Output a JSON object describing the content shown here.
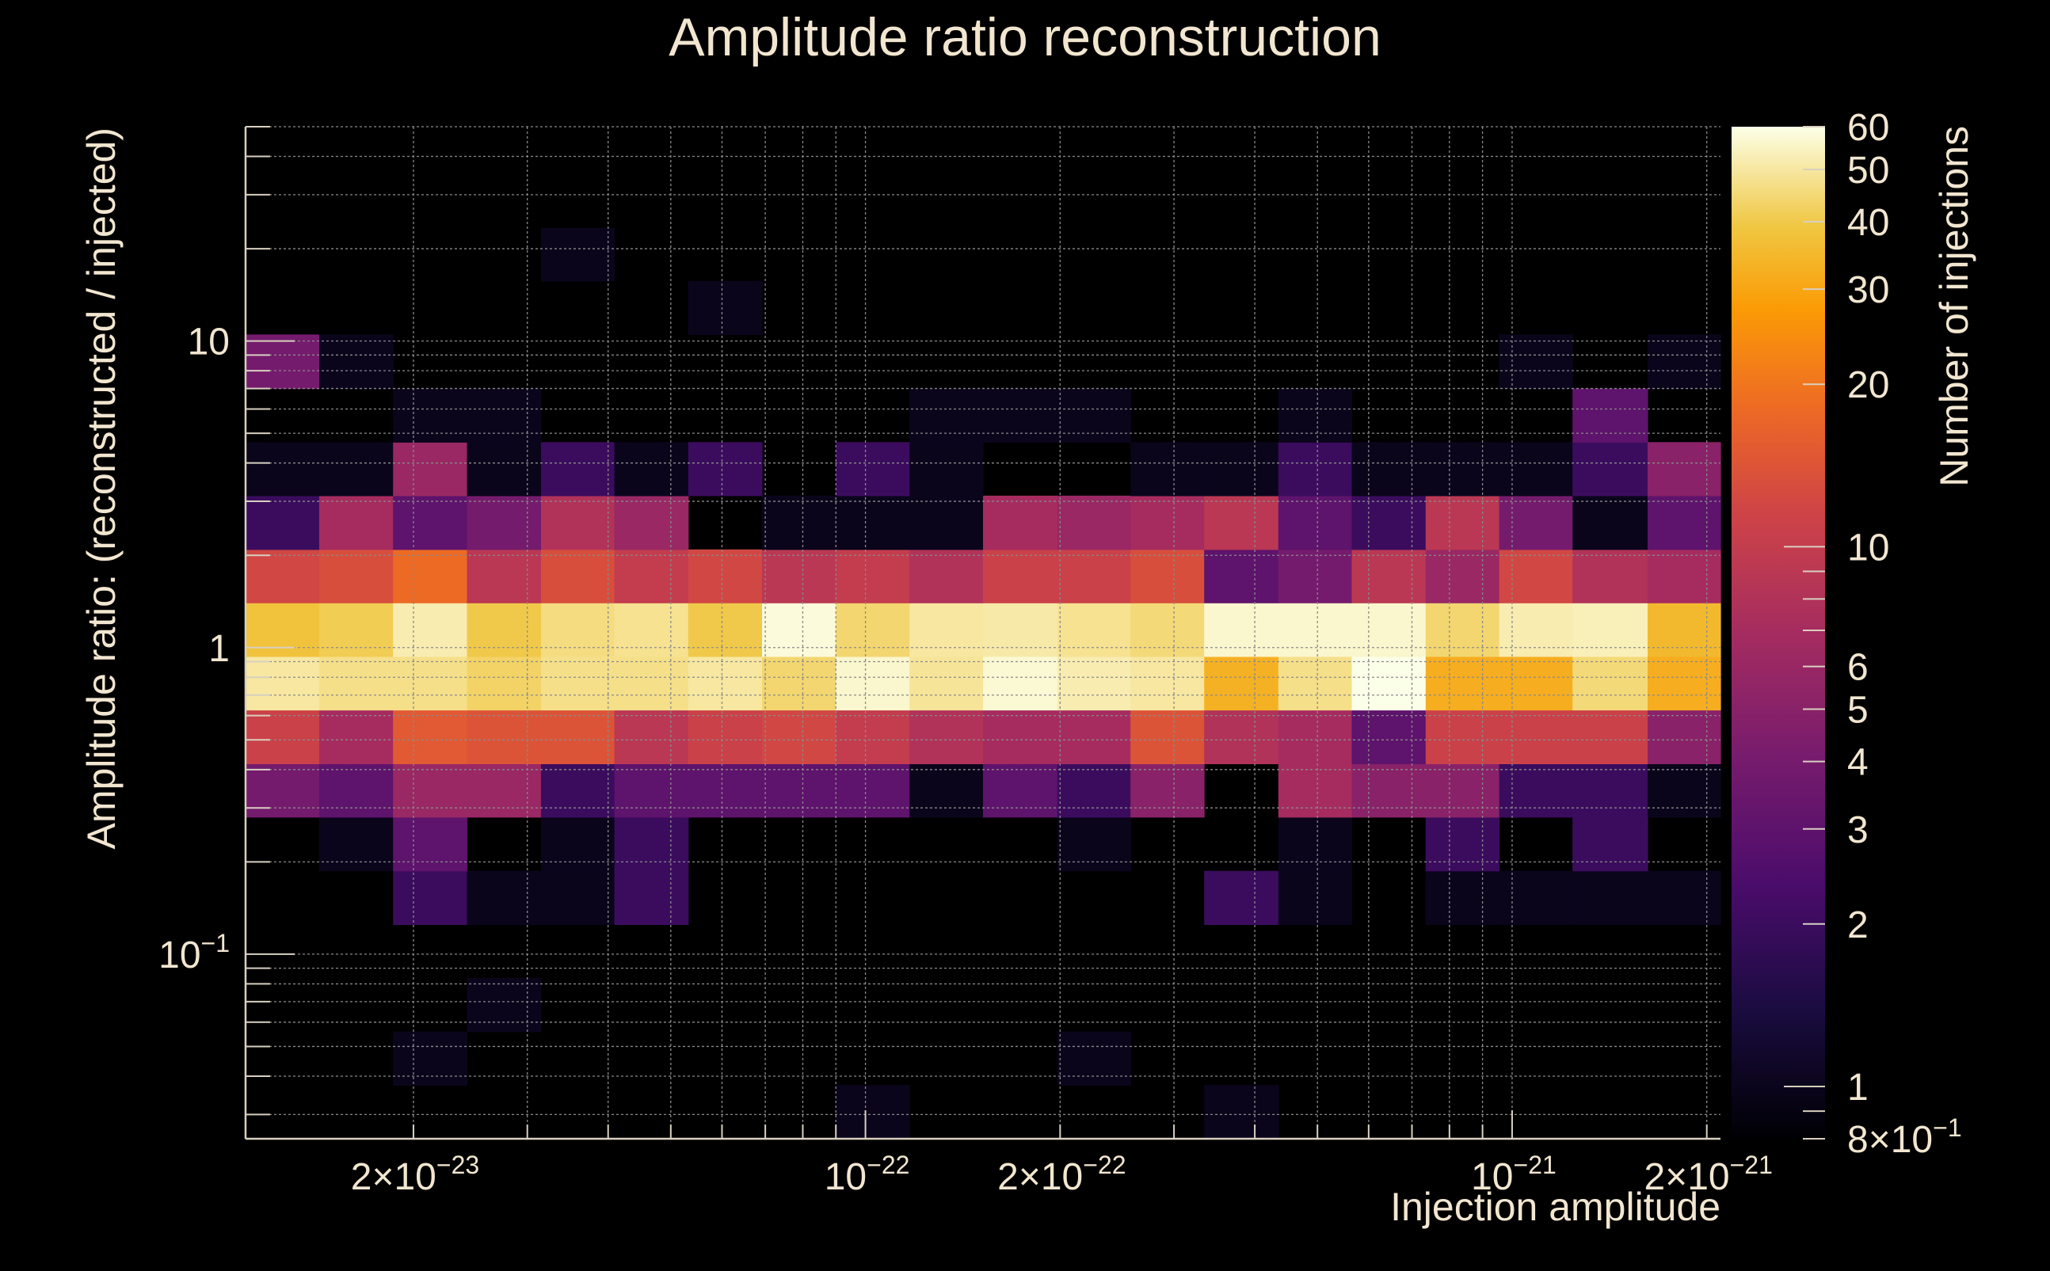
{
  "chart_data": {
    "type": "heatmap",
    "title": "Amplitude ratio reconstruction",
    "xlabel": "Injection amplitude",
    "ylabel": "Amplitude ratio: (reconstructed / injected)",
    "zlabel": "Number of injections",
    "x_scale": "log",
    "y_scale": "log",
    "z_scale": "log",
    "xlim": [
      1.1e-23,
      2.1e-21
    ],
    "ylim": [
      0.025,
      50
    ],
    "zlim": [
      0.8,
      60
    ],
    "x_ticks": [
      {
        "value": 2e-23,
        "mantissa": "2×",
        "base": "10",
        "exp": "−23"
      },
      {
        "value": 1e-22,
        "mantissa": "",
        "base": "10",
        "exp": "−22"
      },
      {
        "value": 2e-22,
        "mantissa": "2×",
        "base": "10",
        "exp": "−22"
      },
      {
        "value": 1e-21,
        "mantissa": "",
        "base": "10",
        "exp": "−21"
      },
      {
        "value": 2e-21,
        "mantissa": "2×",
        "base": "10",
        "exp": "−21"
      }
    ],
    "y_ticks": [
      {
        "value": 10,
        "mantissa": "10",
        "base": "",
        "exp": ""
      },
      {
        "value": 1,
        "mantissa": "1",
        "base": "",
        "exp": ""
      },
      {
        "value": 0.1,
        "mantissa": "",
        "base": "10",
        "exp": "−1"
      }
    ],
    "z_ticks": [
      {
        "value": 60,
        "mantissa": "60",
        "base": "",
        "exp": ""
      },
      {
        "value": 50,
        "mantissa": "50",
        "base": "",
        "exp": ""
      },
      {
        "value": 40,
        "mantissa": "40",
        "base": "",
        "exp": ""
      },
      {
        "value": 30,
        "mantissa": "30",
        "base": "",
        "exp": ""
      },
      {
        "value": 20,
        "mantissa": "20",
        "base": "",
        "exp": ""
      },
      {
        "value": 10,
        "mantissa": "10",
        "base": "",
        "exp": ""
      },
      {
        "value": 6,
        "mantissa": "6",
        "base": "",
        "exp": ""
      },
      {
        "value": 5,
        "mantissa": "5",
        "base": "",
        "exp": ""
      },
      {
        "value": 4,
        "mantissa": "4",
        "base": "",
        "exp": ""
      },
      {
        "value": 3,
        "mantissa": "3",
        "base": "",
        "exp": ""
      },
      {
        "value": 2,
        "mantissa": "2",
        "base": "",
        "exp": ""
      },
      {
        "value": 1,
        "mantissa": "1",
        "base": "",
        "exp": ""
      },
      {
        "value": 0.8,
        "mantissa": "8×",
        "base": "10",
        "exp": "−1"
      }
    ],
    "grid": true,
    "colormap": "inferno",
    "x_bin_edges": [
      1.1e-23,
      1.43e-23,
      1.86e-23,
      2.42e-23,
      3.15e-23,
      4.09e-23,
      5.32e-23,
      6.92e-23,
      9e-23,
      1.17e-22,
      1.52e-22,
      1.98e-22,
      2.57e-22,
      3.34e-22,
      4.35e-22,
      5.65e-22,
      7.35e-22,
      9.55e-22,
      1.24e-21,
      1.62e-21,
      2.1e-21
    ],
    "y_bin_edges": [
      0.025,
      0.0374,
      0.0559,
      0.0836,
      0.125,
      0.187,
      0.28,
      0.418,
      0.626,
      0.936,
      1.4,
      2.09,
      3.13,
      4.68,
      7.0,
      10.5,
      15.7,
      23.4,
      35.0,
      52.4
    ],
    "counts": [
      [
        0,
        0,
        0,
        0,
        0,
        0,
        0,
        0,
        1,
        0,
        0,
        0,
        0,
        1,
        0,
        0,
        0,
        0,
        0,
        0
      ],
      [
        0,
        0,
        1,
        0,
        0,
        0,
        0,
        0,
        0,
        0,
        0,
        1,
        0,
        0,
        0,
        0,
        0,
        0,
        0,
        0
      ],
      [
        0,
        0,
        0,
        1,
        0,
        0,
        0,
        0,
        0,
        0,
        0,
        0,
        0,
        0,
        0,
        0,
        0,
        0,
        0,
        0
      ],
      [
        0,
        0,
        0,
        0,
        0,
        0,
        0,
        0,
        0,
        0,
        0,
        0,
        0,
        0,
        0,
        0,
        0,
        0,
        0,
        0
      ],
      [
        0,
        0,
        2,
        1,
        1,
        2,
        0,
        0,
        0,
        0,
        0,
        0,
        0,
        2,
        1,
        0,
        1,
        1,
        1,
        1
      ],
      [
        0,
        1,
        3,
        0,
        1,
        2,
        0,
        0,
        0,
        0,
        0,
        1,
        0,
        0,
        1,
        0,
        2,
        0,
        2,
        0
      ],
      [
        4,
        3,
        6,
        6,
        2,
        3,
        3,
        3,
        3,
        1,
        3,
        2,
        5,
        0,
        7,
        5,
        5,
        2,
        2,
        1
      ],
      [
        11,
        7,
        15,
        14,
        14,
        9,
        11,
        12,
        10,
        8,
        7,
        7,
        14,
        8,
        7,
        3,
        11,
        11,
        11,
        5
      ],
      [
        50,
        47,
        47,
        43,
        47,
        47,
        50,
        44,
        56,
        49,
        57,
        52,
        50,
        33,
        47,
        60,
        32,
        32,
        45,
        32
      ],
      [
        38,
        41,
        52,
        40,
        46,
        48,
        40,
        58,
        44,
        50,
        51,
        48,
        45,
        56,
        56,
        56,
        44,
        52,
        53,
        35
      ],
      [
        12,
        13,
        18,
        9,
        13,
        10,
        12,
        9,
        10,
        8,
        11,
        11,
        13,
        3,
        4,
        9,
        6,
        12,
        8,
        7
      ],
      [
        2,
        7,
        3,
        4,
        8,
        6,
        0,
        1,
        1,
        1,
        7,
        6,
        7,
        9,
        3,
        2,
        9,
        4,
        1,
        3
      ],
      [
        1,
        1,
        6,
        1,
        2,
        1,
        2,
        0,
        2,
        1,
        0,
        0,
        1,
        1,
        2,
        1,
        1,
        1,
        2,
        5
      ],
      [
        0,
        0,
        1,
        1,
        0,
        0,
        0,
        0,
        0,
        1,
        1,
        1,
        0,
        0,
        1,
        0,
        0,
        0,
        3,
        0
      ],
      [
        4,
        1,
        0,
        0,
        0,
        0,
        0,
        0,
        0,
        0,
        0,
        0,
        0,
        0,
        0,
        0,
        0,
        1,
        0,
        1
      ],
      [
        0,
        0,
        0,
        0,
        0,
        0,
        1,
        0,
        0,
        0,
        0,
        0,
        0,
        0,
        0,
        0,
        0,
        0,
        0,
        0
      ],
      [
        0,
        0,
        0,
        0,
        1,
        0,
        0,
        0,
        0,
        0,
        0,
        0,
        0,
        0,
        0,
        0,
        0,
        0,
        0,
        0
      ],
      [
        0,
        0,
        0,
        0,
        0,
        0,
        0,
        0,
        0,
        0,
        0,
        0,
        0,
        0,
        0,
        0,
        0,
        0,
        0,
        0
      ],
      [
        0,
        0,
        0,
        0,
        0,
        0,
        0,
        0,
        0,
        0,
        0,
        0,
        0,
        0,
        0,
        0,
        0,
        0,
        0,
        0
      ]
    ]
  }
}
